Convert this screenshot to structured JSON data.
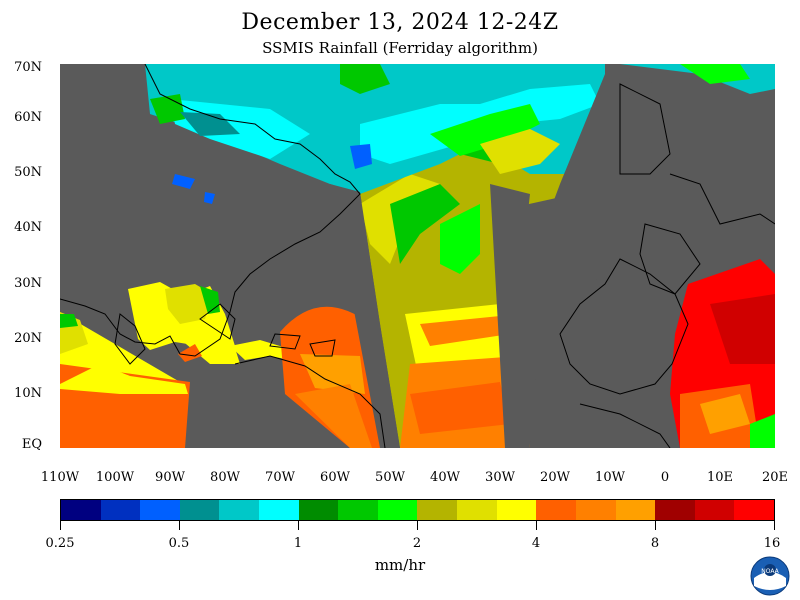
{
  "title": "December 13, 2024 12-24Z",
  "subtitle": "SSMIS Rainfall (Ferriday algorithm)",
  "lat_labels": [
    "70N",
    "60N",
    "50N",
    "40N",
    "30N",
    "20N",
    "10N",
    "EQ"
  ],
  "lon_labels": [
    "110W",
    "100W",
    "90W",
    "80W",
    "70W",
    "60W",
    "50W",
    "40W",
    "30W",
    "20W",
    "10W",
    "0",
    "10E",
    "20E"
  ],
  "colorbar": {
    "colors": [
      "#000080",
      "#0030c0",
      "#0060ff",
      "#009090",
      "#00c8c8",
      "#00ffff",
      "#008c00",
      "#00c800",
      "#00ff00",
      "#b4b400",
      "#e0e000",
      "#ffff00",
      "#ff6000",
      "#ff8000",
      "#ffa000",
      "#a00000",
      "#d00000",
      "#ff0000"
    ],
    "tick_labels": [
      "0.25",
      "0.5",
      "1",
      "2",
      "4",
      "8",
      "16"
    ],
    "units": "mm/hr"
  },
  "colors": {
    "land": "#5a5a5a",
    "no_data": "#5a5a5a",
    "coast": "#000000"
  },
  "logo": {
    "icon": "noaa-logo",
    "text": "NOAA"
  }
}
